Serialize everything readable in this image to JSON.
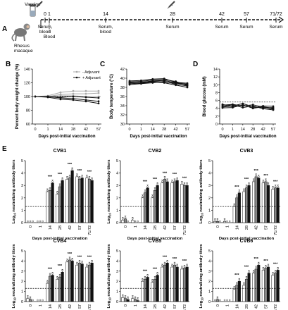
{
  "panelA": {
    "letter": "A",
    "vaccine_label": "Vaccine",
    "monkey_label": "Rhesus\nmacaque",
    "day_labels": [
      "0",
      "1",
      "14",
      "28",
      "42",
      "57",
      "71/72"
    ],
    "sample_labels": [
      "Serum,\nblood",
      "Blood",
      "Serum,\nblood",
      "Serum",
      "Serum",
      "Serum",
      "Serum"
    ],
    "vaccination_days": [
      "0",
      "28"
    ]
  },
  "panelB": {
    "letter": "B",
    "chart_data": {
      "type": "line",
      "ylabel": "Percent body weight change (%)",
      "xlabel": "Days post-initial vaccination",
      "categories": [
        "0",
        "1",
        "14",
        "28",
        "42",
        "57"
      ],
      "ylim": [
        60,
        140
      ],
      "yticks": [
        60,
        80,
        100,
        120,
        140
      ],
      "reference_line": 100,
      "legend": {
        "placement": "top-right",
        "entries": [
          "- Adjuvant",
          "+ Adjuvant"
        ]
      },
      "series": [
        {
          "name": "- Adjuvant",
          "color": "#aaaaaa",
          "values": [
            100,
            101,
            106,
            108,
            108,
            108
          ]
        },
        {
          "name": "- Adjuvant",
          "color": "#aaaaaa",
          "values": [
            100,
            100,
            103,
            104,
            104,
            105
          ]
        },
        {
          "name": "- Adjuvant",
          "color": "#aaaaaa",
          "values": [
            100,
            100,
            101,
            101,
            100,
            100
          ]
        },
        {
          "name": "+ Adjuvant",
          "color": "#111111",
          "values": [
            100,
            100,
            98,
            97,
            95,
            93
          ]
        },
        {
          "name": "+ Adjuvant",
          "color": "#111111",
          "values": [
            100,
            99,
            96,
            95,
            93,
            90
          ]
        },
        {
          "name": "+ Adjuvant",
          "color": "#111111",
          "values": [
            100,
            100,
            99,
            100,
            99,
            98
          ]
        }
      ]
    }
  },
  "panelC": {
    "letter": "C",
    "chart_data": {
      "type": "line",
      "ylabel": "Body temperature (°C)",
      "xlabel": "Days post-initial vaccination",
      "categories": [
        "0",
        "1",
        "14",
        "28",
        "42",
        "57"
      ],
      "ylim": [
        30,
        42
      ],
      "yticks": [
        30,
        32,
        34,
        36,
        38,
        40,
        42
      ],
      "series": [
        {
          "color": "#111111",
          "values": [
            39.2,
            39.3,
            39.6,
            39.7,
            39.3,
            38.4
          ]
        },
        {
          "color": "#111111",
          "values": [
            39.0,
            39.1,
            39.4,
            39.5,
            39.0,
            38.7
          ]
        },
        {
          "color": "#111111",
          "values": [
            38.8,
            38.9,
            39.2,
            39.0,
            38.5,
            38.0
          ]
        },
        {
          "color": "#111111",
          "values": [
            39.4,
            39.5,
            39.8,
            39.9,
            39.1,
            38.9
          ]
        },
        {
          "color": "#111111",
          "values": [
            38.6,
            38.8,
            39.0,
            39.3,
            38.7,
            38.3
          ]
        },
        {
          "color": "#111111",
          "values": [
            39.1,
            39.0,
            39.3,
            39.2,
            38.9,
            38.6
          ]
        }
      ]
    }
  },
  "panelD": {
    "letter": "D",
    "chart_data": {
      "type": "line",
      "ylabel": "Blood glucose (mM)",
      "xlabel": "Days post-initial vaccination",
      "categories": [
        "0",
        "1",
        "14",
        "28",
        "42",
        "57"
      ],
      "ylim": [
        0,
        14
      ],
      "yticks": [
        0,
        2,
        4,
        6,
        8,
        10,
        12,
        14
      ],
      "reference_line": 5.6,
      "series": [
        {
          "color": "#111111",
          "values": [
            4.8,
            5.0,
            4.6,
            4.9,
            4.3,
            3.8
          ]
        },
        {
          "color": "#111111",
          "values": [
            4.3,
            4.6,
            5.2,
            4.4,
            4.1,
            4.2
          ]
        },
        {
          "color": "#111111",
          "values": [
            5.0,
            4.4,
            4.8,
            4.1,
            4.6,
            4.5
          ]
        },
        {
          "color": "#111111",
          "values": [
            4.5,
            4.9,
            4.2,
            4.6,
            3.9,
            3.6
          ]
        },
        {
          "color": "#111111",
          "values": [
            4.1,
            4.2,
            4.9,
            4.0,
            4.4,
            4.0
          ]
        }
      ]
    }
  },
  "panelE": {
    "letter": "E",
    "chart_data": [
      {
        "type": "bar",
        "title": "CVB1",
        "ylabel": "Log10 neutralizing antibody titers",
        "xlabel": "Days post-initial vaccination",
        "categories": [
          "0",
          "1",
          "14",
          "28",
          "42",
          "57",
          "71/72"
        ],
        "ylim": [
          0,
          5
        ],
        "yticks": [
          0,
          1,
          2,
          3,
          4,
          5
        ],
        "reference_line": 1.3,
        "series": [
          {
            "name": "- Adjuvant",
            "color": "#ffffff",
            "values": [
              0,
              0,
              2.5,
              2.3,
              3.5,
              3.7,
              3.6
            ]
          },
          {
            "name": "+ Adjuvant",
            "color": "#888888",
            "values": [
              0,
              0,
              2.6,
              2.9,
              3.6,
              3.5,
              3.5
            ]
          },
          {
            "name": "+ Adjuvant",
            "color": "#111111",
            "values": [
              0,
              0,
              3.2,
              3.4,
              4.2,
              3.6,
              3.4
            ]
          }
        ],
        "significance": [
          "",
          "",
          "***",
          "***",
          "***",
          "***",
          "***"
        ]
      },
      {
        "type": "bar",
        "title": "CVB2",
        "ylabel": "Log10 neutralizing antibody titers",
        "xlabel": "Days post-initial vaccination",
        "categories": [
          "0",
          "1",
          "14",
          "28",
          "42",
          "57",
          "71/72"
        ],
        "ylim": [
          0,
          5
        ],
        "yticks": [
          0,
          1,
          2,
          3,
          4,
          5
        ],
        "reference_line": 1.3,
        "series": [
          {
            "name": "- Adjuvant",
            "color": "#ffffff",
            "values": [
              0.2,
              0.2,
              2.0,
              2.0,
              3.2,
              3.2,
              3.1
            ]
          },
          {
            "name": "+ Adjuvant",
            "color": "#888888",
            "values": [
              0.3,
              0,
              2.4,
              2.6,
              3.5,
              3.3,
              3.0
            ]
          },
          {
            "name": "+ Adjuvant",
            "color": "#111111",
            "values": [
              0,
              0,
              2.8,
              3.0,
              3.3,
              3.4,
              3.0
            ]
          }
        ],
        "significance": [
          "",
          "",
          "***",
          "***",
          "***",
          "***",
          "***"
        ]
      },
      {
        "type": "bar",
        "title": "CVB3",
        "ylabel": "Log10 neutralizing antibody titers",
        "xlabel": "Days post-initial vaccination",
        "categories": [
          "0",
          "1",
          "14",
          "28",
          "42",
          "57",
          "71/72"
        ],
        "ylim": [
          0,
          5
        ],
        "yticks": [
          0,
          1,
          2,
          3,
          4,
          5
        ],
        "reference_line": 1.3,
        "series": [
          {
            "name": "- Adjuvant",
            "color": "#ffffff",
            "values": [
              0.1,
              0.1,
              1.3,
              2.5,
              3.3,
              3.2,
              2.7
            ]
          },
          {
            "name": "+ Adjuvant",
            "color": "#888888",
            "values": [
              0.1,
              0,
              2.0,
              2.8,
              3.7,
              3.3,
              2.8
            ]
          },
          {
            "name": "+ Adjuvant",
            "color": "#111111",
            "values": [
              0,
              0,
              2.4,
              3.0,
              3.6,
              3.0,
              2.8
            ]
          }
        ],
        "significance": [
          "",
          "",
          "***",
          "***",
          "***",
          "***",
          "***"
        ]
      },
      {
        "type": "bar",
        "title": "CVB4",
        "ylabel": "Log10 neutralizing antibody titers",
        "xlabel": "Days post-initial vaccination",
        "categories": [
          "0",
          "1",
          "14",
          "28",
          "42",
          "57",
          "71/72"
        ],
        "ylim": [
          0,
          5
        ],
        "yticks": [
          0,
          1,
          2,
          3,
          4,
          5
        ],
        "reference_line": 1.3,
        "series": [
          {
            "name": "- Adjuvant",
            "color": "#ffffff",
            "values": [
              0.3,
              0,
              1.8,
              2.2,
              3.9,
              3.6,
              3.4
            ]
          },
          {
            "name": "+ Adjuvant",
            "color": "#888888",
            "values": [
              0.2,
              0,
              2.5,
              2.4,
              4.1,
              3.8,
              3.6
            ]
          },
          {
            "name": "+ Adjuvant",
            "color": "#111111",
            "values": [
              0,
              0,
              2.6,
              2.9,
              4.0,
              3.7,
              3.8
            ]
          }
        ],
        "significance": [
          "",
          "",
          "***",
          "***",
          "***",
          "***",
          "***"
        ]
      },
      {
        "type": "bar",
        "title": "CVB5",
        "ylabel": "Log10 neutralizing antibody titers",
        "xlabel": "Days post-initial vaccination",
        "categories": [
          "0",
          "1",
          "14",
          "28",
          "42",
          "57",
          "71/72"
        ],
        "ylim": [
          0,
          5
        ],
        "yticks": [
          0,
          1,
          2,
          3,
          4,
          5
        ],
        "reference_line": 1.3,
        "series": [
          {
            "name": "- Adjuvant",
            "color": "#ffffff",
            "values": [
              0.4,
              0.3,
              2.0,
              1.9,
              3.4,
              3.4,
              3.2
            ]
          },
          {
            "name": "+ Adjuvant",
            "color": "#888888",
            "values": [
              0.3,
              0.2,
              2.2,
              2.2,
              3.6,
              3.6,
              3.3
            ]
          },
          {
            "name": "+ Adjuvant",
            "color": "#111111",
            "values": [
              0.2,
              0.1,
              2.4,
              2.6,
              3.8,
              3.4,
              3.4
            ]
          }
        ],
        "significance": [
          "",
          "",
          "***",
          "***",
          "***",
          "***",
          "***"
        ]
      },
      {
        "type": "bar",
        "title": "CVB6",
        "ylabel": "Log10 neutralizing antibody titers",
        "xlabel": "Days post-initial vaccination",
        "categories": [
          "0",
          "1",
          "14",
          "28",
          "42",
          "57",
          "71/72"
        ],
        "ylim": [
          0,
          5
        ],
        "yticks": [
          0,
          1,
          2,
          3,
          4,
          5
        ],
        "reference_line": 1.3,
        "series": [
          {
            "name": "- Adjuvant",
            "color": "#ffffff",
            "values": [
              0,
              0,
              1.2,
              1.6,
              2.8,
              3.1,
              2.6
            ]
          },
          {
            "name": "+ Adjuvant",
            "color": "#888888",
            "values": [
              0.2,
              0,
              1.6,
              2.2,
              3.2,
              3.3,
              2.8
            ]
          },
          {
            "name": "+ Adjuvant",
            "color": "#111111",
            "values": [
              0,
              0,
              2.0,
              2.8,
              3.6,
              3.4,
              3.1
            ]
          }
        ],
        "significance": [
          "",
          "",
          "***",
          "***",
          "***",
          "***",
          "***"
        ]
      }
    ]
  }
}
